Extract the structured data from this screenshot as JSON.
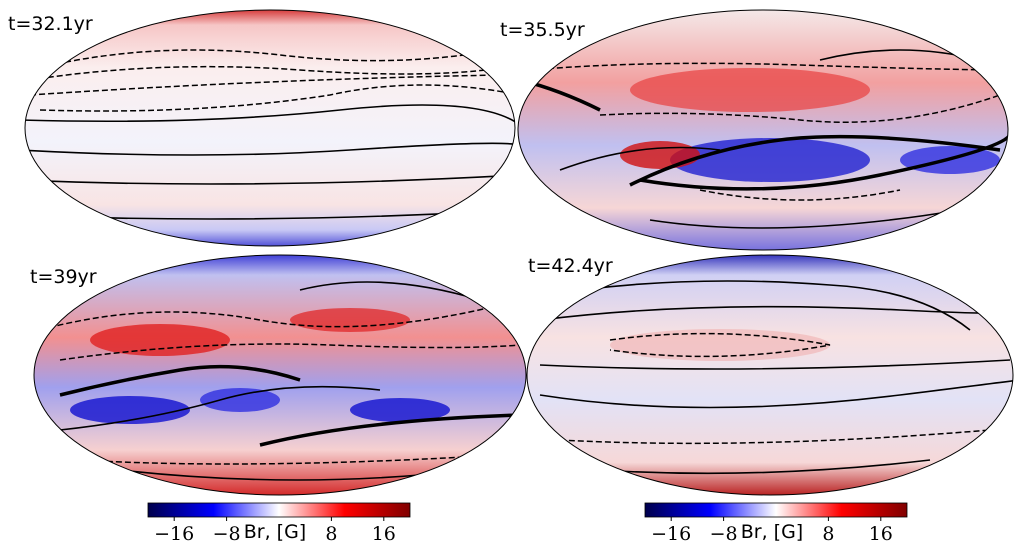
{
  "panels": [
    {
      "label": "t=32.1yr"
    },
    {
      "label": "t=35.5yr"
    },
    {
      "label": "t=39yr"
    },
    {
      "label": "t=42.4yr"
    }
  ],
  "colorbars": [
    {
      "label": "Br, [G]",
      "lim": [
        -20,
        20
      ],
      "ticks": [
        {
          "value": -16,
          "label": "−16"
        },
        {
          "value": -8,
          "label": "−8"
        },
        8,
        16
      ]
    },
    {
      "label": "Br, [G]",
      "lim": [
        -20,
        20
      ],
      "ticks": [
        {
          "value": -16,
          "label": "−16"
        },
        {
          "value": -8,
          "label": "−8"
        },
        8,
        16
      ]
    }
  ]
}
